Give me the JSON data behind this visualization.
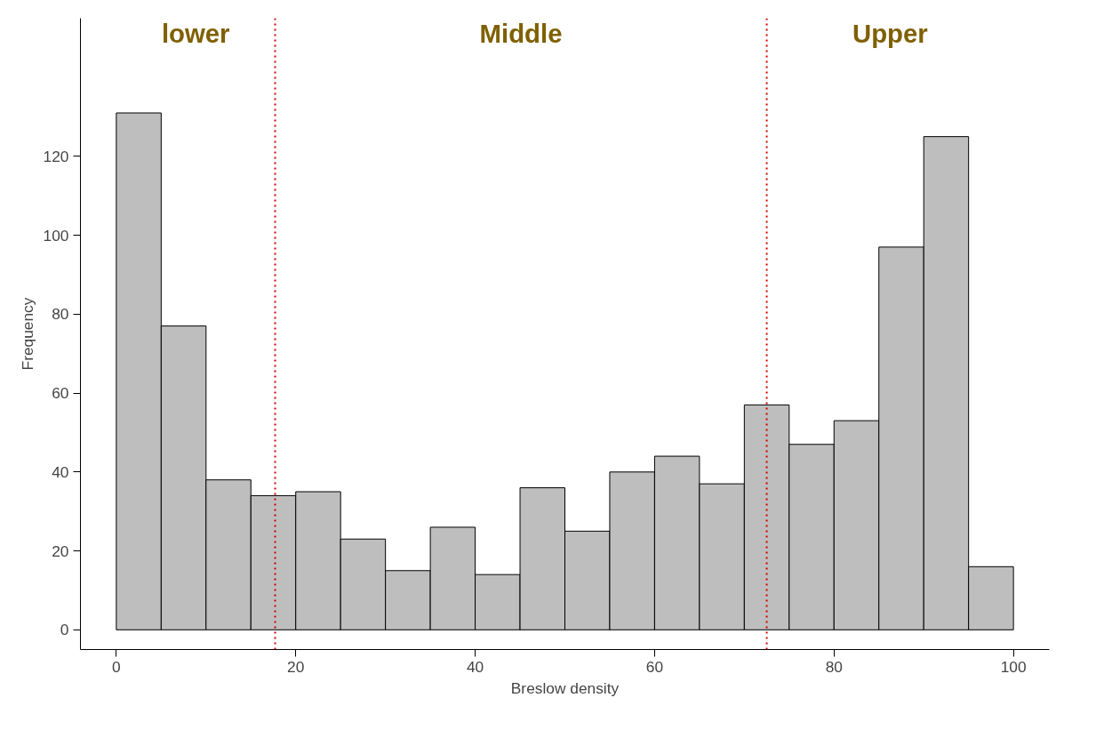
{
  "chart_data": {
    "type": "histogram",
    "xlabel": "Breslow density",
    "ylabel": "Frequency",
    "bins": [
      0,
      5,
      10,
      15,
      20,
      25,
      30,
      35,
      40,
      45,
      50,
      55,
      60,
      65,
      70,
      75,
      80,
      85,
      90,
      95,
      100
    ],
    "values": [
      131,
      77,
      38,
      34,
      35,
      23,
      15,
      26,
      14,
      36,
      25,
      40,
      44,
      37,
      57,
      47,
      53,
      97,
      125,
      16
    ],
    "color": "#bebebe",
    "xlim": [
      -4,
      104
    ],
    "ylim": [
      -5,
      155
    ],
    "xticks": [
      0,
      20,
      40,
      60,
      80,
      100
    ],
    "yticks": [
      0,
      20,
      40,
      60,
      80,
      100,
      120
    ],
    "ref_lines": [
      {
        "axis": "x",
        "value": 17.7,
        "color": "#cc0000",
        "line_style": "dotted"
      },
      {
        "axis": "x",
        "value": 72.5,
        "color": "#cc0000",
        "line_style": "dotted"
      }
    ],
    "annotations": [
      "lower",
      "Middle",
      "Upper"
    ],
    "grid": false
  }
}
